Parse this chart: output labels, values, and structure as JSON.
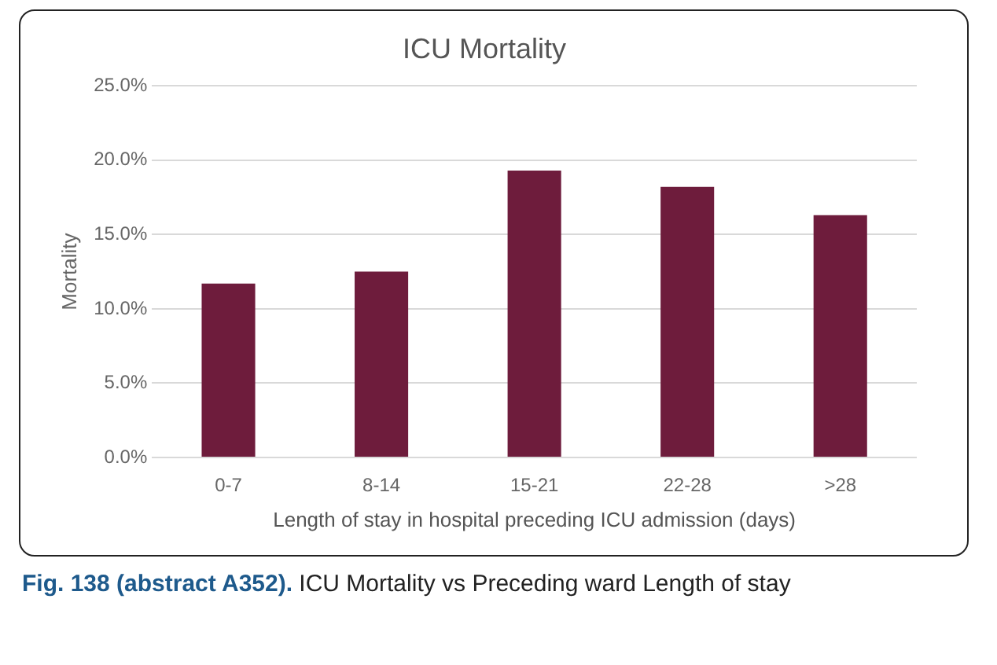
{
  "chart_data": {
    "type": "bar",
    "title": "ICU Mortality",
    "xlabel": "Length of stay in hospital preceding ICU admission (days)",
    "ylabel": "Mortality",
    "categories": [
      "0-7",
      "8-14",
      "15-21",
      "22-28",
      ">28"
    ],
    "values": [
      11.7,
      12.5,
      19.3,
      18.2,
      16.3
    ],
    "color": "#6e1c3c",
    "ylim": [
      0,
      25
    ],
    "yticks": [
      {
        "value": 0,
        "label": "0.0%"
      },
      {
        "value": 5,
        "label": "5.0%"
      },
      {
        "value": 10,
        "label": "10.0%"
      },
      {
        "value": 15,
        "label": "15.0%"
      },
      {
        "value": 20,
        "label": "20.0%"
      },
      {
        "value": 25,
        "label": "25.0%"
      }
    ],
    "grid": "y",
    "legend": false,
    "annotations": [
      "Fig. 138 (abstract A352). ICU Mortality vs Preceding ward Length of stay"
    ]
  }
}
